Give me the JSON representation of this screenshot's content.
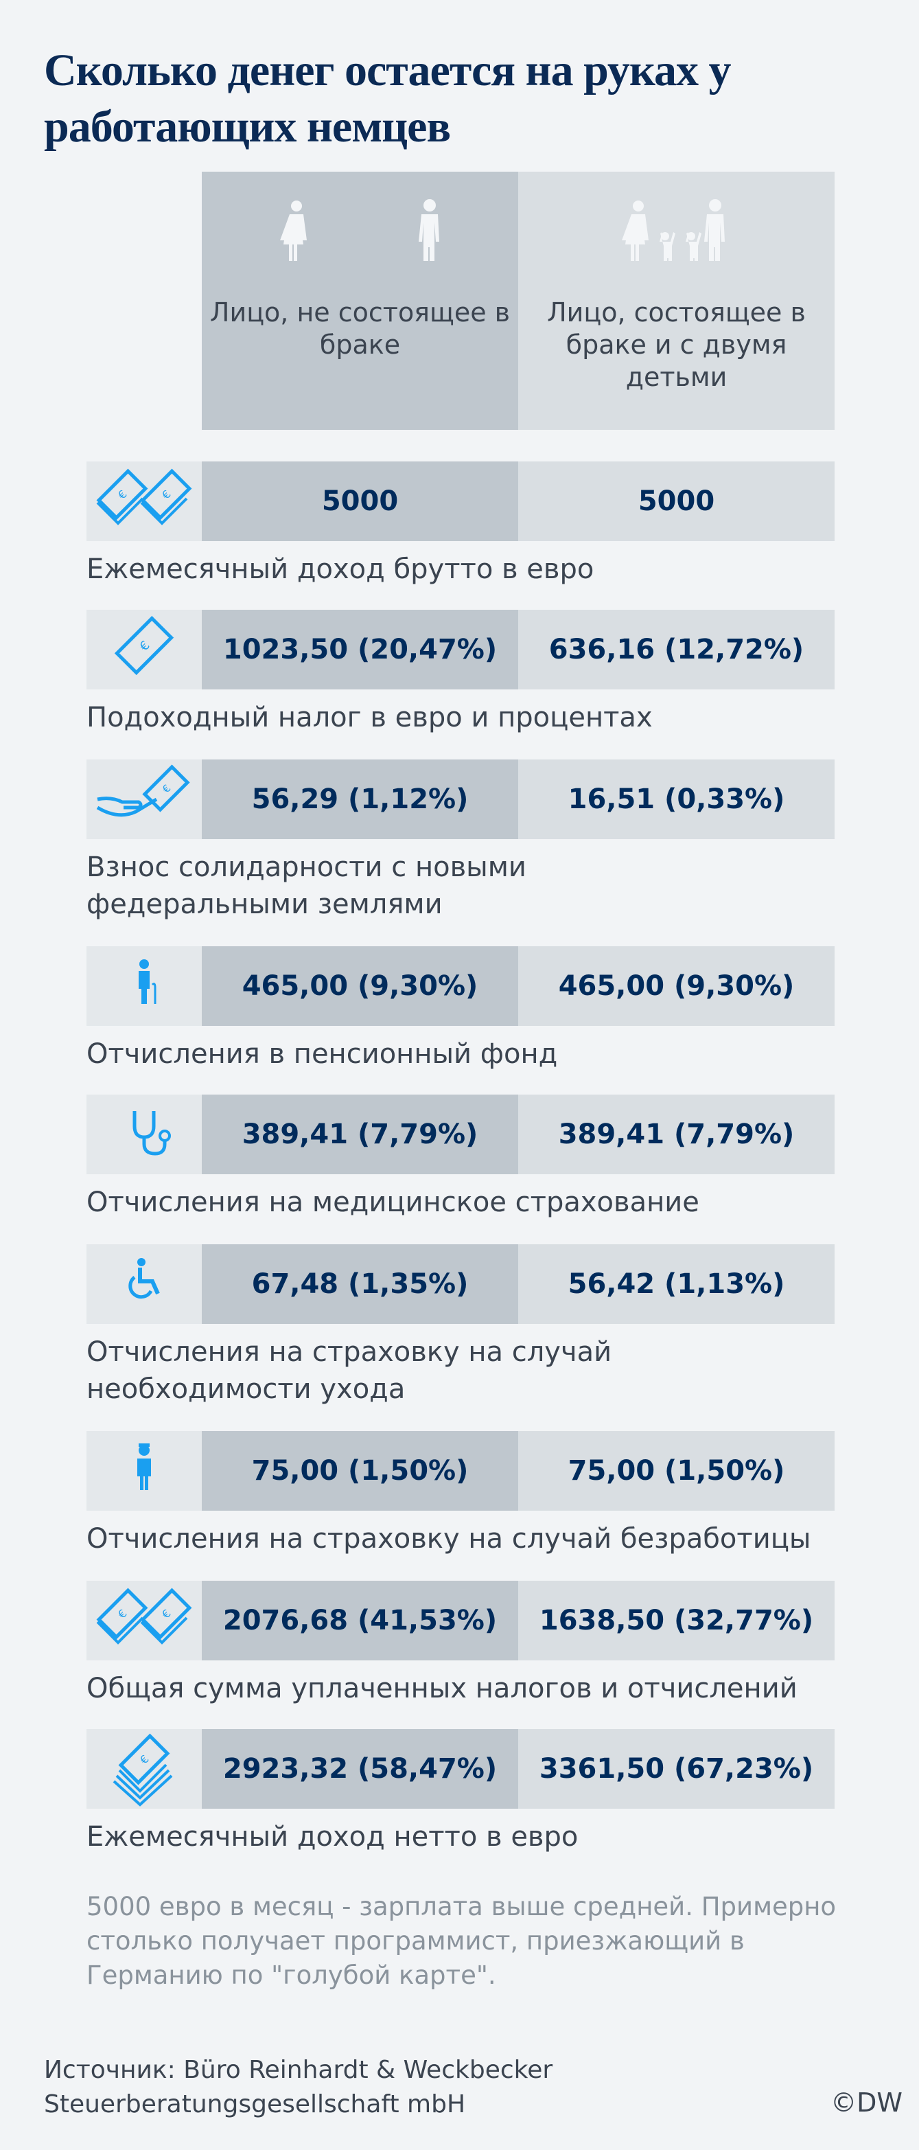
{
  "title": "Сколько денег остается на руках у работающих немцев",
  "columns": [
    {
      "label": "Лицо, не состоящее в браке",
      "icon": "man-woman-icon"
    },
    {
      "label": "Лицо, состоящее в браке и с двумя детьми",
      "icon": "family-icon"
    }
  ],
  "rows": [
    {
      "icon": "two-banknotes-icon",
      "single": "5000",
      "family": "5000",
      "label": "Ежемесячный доход брутто в евро"
    },
    {
      "icon": "banknote-icon",
      "single": "1023,50 (20,47%)",
      "family": "636,16 (12,72%)",
      "label": "Подоходный налог в евро и процентах"
    },
    {
      "icon": "hand-banknote-icon",
      "single": "56,29 (1,12%)",
      "family": "16,51 (0,33%)",
      "label": "Взнос солидарности с новыми федеральными землями"
    },
    {
      "icon": "elderly-person-icon",
      "single": "465,00 (9,30%)",
      "family": "465,00 (9,30%)",
      "label": "Отчисления в пенсионный фонд"
    },
    {
      "icon": "stethoscope-icon",
      "single": "389,41 (7,79%)",
      "family": "389,41 (7,79%)",
      "label": "Отчисления на медицинское страхование"
    },
    {
      "icon": "wheelchair-icon",
      "single": "67,48 (1,35%)",
      "family": "56,42 (1,13%)",
      "label": "Отчисления на страховку на случай необходимости ухода"
    },
    {
      "icon": "worker-icon",
      "single": "75,00 (1,50%)",
      "family": "75,00 (1,50%)",
      "label": "Отчисления на страховку на случай безработицы"
    },
    {
      "icon": "two-banknotes-icon",
      "single": "2076,68 (41,53%)",
      "family": "1638,50 (32,77%)",
      "label": "Общая сумма уплаченных налогов и отчислений"
    },
    {
      "icon": "banknote-stack-icon",
      "single": "2923,32 (58,47%)",
      "family": "3361,50 (67,23%)",
      "label": "Ежемесячный доход нетто в евро"
    }
  ],
  "note": "5000 евро в месяц - зарплата выше средней. Примерно столько получает программист, приезжающий в Германию по \"голубой карте\".",
  "source": "Источник: Büro Reinhardt & Weckbecker Steuerberatungsgesellschaft mbH",
  "brand": "©DW",
  "colors": {
    "accent": "#1a9ff0",
    "value_text": "#002b5c",
    "col_single": "#bfc7ce",
    "col_family": "#d9dee2",
    "icon_cell": "#e4e8eb",
    "background": "#f2f4f6"
  }
}
